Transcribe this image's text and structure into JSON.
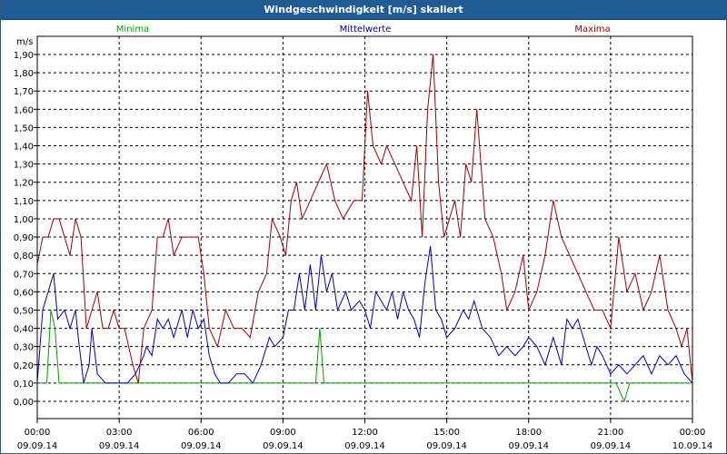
{
  "window": {
    "title": "Windgeschwindigkeit [m/s] skaliert"
  },
  "chart_data": {
    "type": "line",
    "title": "Windgeschwindigkeit [m/s] skaliert",
    "ylabel": "m/s",
    "xlabel": "",
    "ylim": [
      -0.1,
      1.9
    ],
    "xlim": [
      0,
      24
    ],
    "grid": true,
    "legend_placement": "top",
    "y_ticks": [
      "0,00",
      "0,10",
      "0,20",
      "0,30",
      "0,40",
      "0,50",
      "0,60",
      "0,70",
      "0,80",
      "0,90",
      "1,00",
      "1,10",
      "1,20",
      "1,30",
      "1,40",
      "1,50",
      "1,60",
      "1,70",
      "1,80",
      "1,90"
    ],
    "x_ticks": [
      {
        "time": "00:00",
        "date": "09.09.14"
      },
      {
        "time": "03:00",
        "date": "09.09.14"
      },
      {
        "time": "06:00",
        "date": "09.09.14"
      },
      {
        "time": "09:00",
        "date": "09.09.14"
      },
      {
        "time": "12:00",
        "date": "09.09.14"
      },
      {
        "time": "15:00",
        "date": "09.09.14"
      },
      {
        "time": "18:00",
        "date": "09.09.14"
      },
      {
        "time": "21:00",
        "date": "09.09.14"
      },
      {
        "time": "00:00",
        "date": "10.09.14"
      }
    ],
    "series": [
      {
        "name": "Minima",
        "color": "#00a000",
        "points": [
          [
            0,
            0.1
          ],
          [
            0.35,
            0.1
          ],
          [
            0.5,
            0.5
          ],
          [
            0.65,
            0.4
          ],
          [
            0.8,
            0.1
          ],
          [
            10.2,
            0.1
          ],
          [
            10.35,
            0.4
          ],
          [
            10.5,
            0.1
          ],
          [
            21.2,
            0.1
          ],
          [
            21.5,
            0.0
          ],
          [
            21.7,
            0.1
          ],
          [
            24,
            0.1
          ]
        ]
      },
      {
        "name": "Mittelwerte",
        "color": "#0000b0",
        "points": [
          [
            0,
            0.1
          ],
          [
            0.2,
            0.5
          ],
          [
            0.4,
            0.6
          ],
          [
            0.6,
            0.7
          ],
          [
            0.75,
            0.45
          ],
          [
            1,
            0.5
          ],
          [
            1.2,
            0.4
          ],
          [
            1.4,
            0.5
          ],
          [
            1.5,
            0.35
          ],
          [
            1.7,
            0.1
          ],
          [
            1.9,
            0.2
          ],
          [
            2,
            0.4
          ],
          [
            2.2,
            0.15
          ],
          [
            2.5,
            0.1
          ],
          [
            2.8,
            0.1
          ],
          [
            3,
            0.1
          ],
          [
            3.3,
            0.1
          ],
          [
            3.6,
            0.15
          ],
          [
            3.9,
            0.25
          ],
          [
            4,
            0.3
          ],
          [
            4.2,
            0.25
          ],
          [
            4.4,
            0.45
          ],
          [
            4.6,
            0.4
          ],
          [
            4.8,
            0.45
          ],
          [
            5,
            0.35
          ],
          [
            5.3,
            0.5
          ],
          [
            5.5,
            0.35
          ],
          [
            5.7,
            0.5
          ],
          [
            5.9,
            0.4
          ],
          [
            6.1,
            0.45
          ],
          [
            6.3,
            0.25
          ],
          [
            6.5,
            0.15
          ],
          [
            6.7,
            0.1
          ],
          [
            7,
            0.1
          ],
          [
            7.3,
            0.15
          ],
          [
            7.6,
            0.15
          ],
          [
            7.9,
            0.1
          ],
          [
            8.2,
            0.2
          ],
          [
            8.5,
            0.35
          ],
          [
            8.7,
            0.3
          ],
          [
            9,
            0.35
          ],
          [
            9.2,
            0.5
          ],
          [
            9.4,
            0.5
          ],
          [
            9.6,
            0.7
          ],
          [
            9.8,
            0.5
          ],
          [
            10,
            0.75
          ],
          [
            10.2,
            0.5
          ],
          [
            10.4,
            0.8
          ],
          [
            10.6,
            0.6
          ],
          [
            10.8,
            0.7
          ],
          [
            11,
            0.5
          ],
          [
            11.3,
            0.6
          ],
          [
            11.5,
            0.5
          ],
          [
            11.8,
            0.55
          ],
          [
            12,
            0.5
          ],
          [
            12.2,
            0.4
          ],
          [
            12.4,
            0.6
          ],
          [
            12.6,
            0.55
          ],
          [
            12.8,
            0.5
          ],
          [
            13,
            0.6
          ],
          [
            13.2,
            0.45
          ],
          [
            13.4,
            0.6
          ],
          [
            13.6,
            0.5
          ],
          [
            13.8,
            0.45
          ],
          [
            14,
            0.35
          ],
          [
            14.2,
            0.65
          ],
          [
            14.4,
            0.85
          ],
          [
            14.6,
            0.5
          ],
          [
            14.8,
            0.45
          ],
          [
            15,
            0.35
          ],
          [
            15.3,
            0.4
          ],
          [
            15.6,
            0.5
          ],
          [
            15.8,
            0.45
          ],
          [
            16,
            0.55
          ],
          [
            16.3,
            0.4
          ],
          [
            16.6,
            0.35
          ],
          [
            16.9,
            0.25
          ],
          [
            17.2,
            0.3
          ],
          [
            17.5,
            0.25
          ],
          [
            17.8,
            0.3
          ],
          [
            18,
            0.35
          ],
          [
            18.3,
            0.3
          ],
          [
            18.6,
            0.2
          ],
          [
            18.9,
            0.35
          ],
          [
            19.2,
            0.2
          ],
          [
            19.4,
            0.45
          ],
          [
            19.6,
            0.4
          ],
          [
            19.8,
            0.45
          ],
          [
            20,
            0.35
          ],
          [
            20.3,
            0.2
          ],
          [
            20.5,
            0.3
          ],
          [
            20.7,
            0.25
          ],
          [
            21,
            0.15
          ],
          [
            21.3,
            0.2
          ],
          [
            21.6,
            0.15
          ],
          [
            21.9,
            0.2
          ],
          [
            22.2,
            0.25
          ],
          [
            22.5,
            0.15
          ],
          [
            22.8,
            0.25
          ],
          [
            23.1,
            0.2
          ],
          [
            23.4,
            0.25
          ],
          [
            23.7,
            0.15
          ],
          [
            24,
            0.1
          ]
        ]
      },
      {
        "name": "Maxima",
        "color": "#a00000",
        "points": [
          [
            0,
            0.75
          ],
          [
            0.2,
            0.9
          ],
          [
            0.4,
            0.9
          ],
          [
            0.6,
            1.0
          ],
          [
            0.8,
            1.0
          ],
          [
            1,
            0.9
          ],
          [
            1.2,
            0.8
          ],
          [
            1.4,
            1.0
          ],
          [
            1.6,
            0.9
          ],
          [
            1.8,
            0.4
          ],
          [
            2,
            0.5
          ],
          [
            2.2,
            0.6
          ],
          [
            2.4,
            0.4
          ],
          [
            2.6,
            0.4
          ],
          [
            2.8,
            0.5
          ],
          [
            3,
            0.4
          ],
          [
            3.2,
            0.4
          ],
          [
            3.5,
            0.2
          ],
          [
            3.7,
            0.1
          ],
          [
            3.9,
            0.4
          ],
          [
            4.2,
            0.5
          ],
          [
            4.4,
            0.9
          ],
          [
            4.6,
            0.9
          ],
          [
            4.8,
            1.0
          ],
          [
            5,
            0.8
          ],
          [
            5.3,
            0.9
          ],
          [
            5.6,
            0.9
          ],
          [
            5.9,
            0.9
          ],
          [
            6.1,
            0.7
          ],
          [
            6.3,
            0.4
          ],
          [
            6.6,
            0.3
          ],
          [
            6.9,
            0.5
          ],
          [
            7.2,
            0.4
          ],
          [
            7.5,
            0.4
          ],
          [
            7.8,
            0.35
          ],
          [
            8.1,
            0.6
          ],
          [
            8.4,
            0.7
          ],
          [
            8.6,
            1.0
          ],
          [
            8.9,
            0.9
          ],
          [
            9.1,
            0.8
          ],
          [
            9.3,
            1.1
          ],
          [
            9.5,
            1.2
          ],
          [
            9.7,
            1.0
          ],
          [
            10,
            1.1
          ],
          [
            10.3,
            1.2
          ],
          [
            10.6,
            1.3
          ],
          [
            10.9,
            1.1
          ],
          [
            11.2,
            1.0
          ],
          [
            11.6,
            1.1
          ],
          [
            11.9,
            1.1
          ],
          [
            12.1,
            1.7
          ],
          [
            12.3,
            1.4
          ],
          [
            12.6,
            1.3
          ],
          [
            12.8,
            1.4
          ],
          [
            13.1,
            1.3
          ],
          [
            13.4,
            1.2
          ],
          [
            13.7,
            1.1
          ],
          [
            13.9,
            1.4
          ],
          [
            14.1,
            0.9
          ],
          [
            14.3,
            1.6
          ],
          [
            14.5,
            1.9
          ],
          [
            14.7,
            1.2
          ],
          [
            14.9,
            0.9
          ],
          [
            15.1,
            1.0
          ],
          [
            15.3,
            1.1
          ],
          [
            15.5,
            0.9
          ],
          [
            15.7,
            1.3
          ],
          [
            15.9,
            1.2
          ],
          [
            16.1,
            1.6
          ],
          [
            16.4,
            1.0
          ],
          [
            16.7,
            0.9
          ],
          [
            17,
            0.7
          ],
          [
            17.2,
            0.5
          ],
          [
            17.5,
            0.6
          ],
          [
            17.8,
            0.8
          ],
          [
            18,
            0.5
          ],
          [
            18.3,
            0.6
          ],
          [
            18.6,
            0.8
          ],
          [
            18.9,
            1.1
          ],
          [
            19.2,
            0.9
          ],
          [
            19.5,
            0.8
          ],
          [
            19.8,
            0.7
          ],
          [
            20.1,
            0.6
          ],
          [
            20.4,
            0.5
          ],
          [
            20.7,
            0.5
          ],
          [
            21,
            0.4
          ],
          [
            21.3,
            0.9
          ],
          [
            21.6,
            0.6
          ],
          [
            21.9,
            0.7
          ],
          [
            22.2,
            0.5
          ],
          [
            22.5,
            0.6
          ],
          [
            22.8,
            0.8
          ],
          [
            23.1,
            0.5
          ],
          [
            23.4,
            0.4
          ],
          [
            23.6,
            0.3
          ],
          [
            23.8,
            0.4
          ],
          [
            24,
            0.1
          ]
        ]
      }
    ]
  }
}
